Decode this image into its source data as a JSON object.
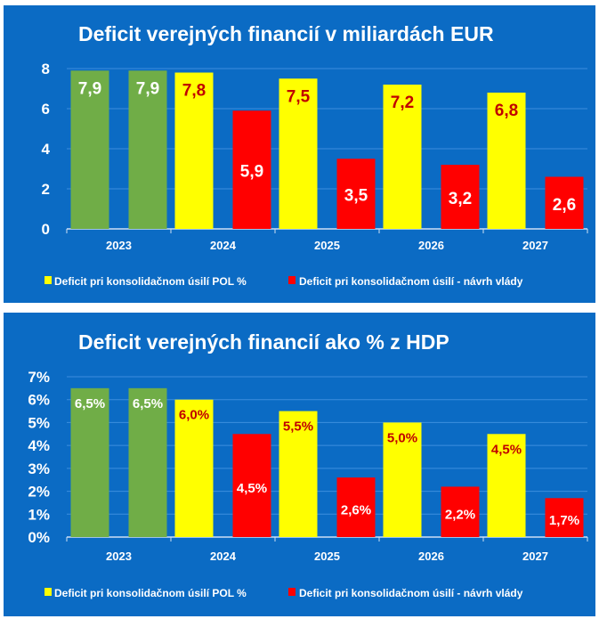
{
  "colors": {
    "background": "#0b6bc4",
    "green": "#70ad47",
    "yellow": "#ffff00",
    "red": "#ff0000",
    "label_dark_red": "#c00000",
    "text": "#ffffff",
    "grid": "#3d8ede"
  },
  "chart_data": [
    {
      "type": "bar",
      "title": "Deficit verejných financií v miliardách EUR",
      "categories": [
        "2023",
        "2024",
        "2025",
        "2026",
        "2027"
      ],
      "series": [
        {
          "name": "Deficit pri konsolidačnom úsilí POL %",
          "values": [
            7.9,
            7.8,
            7.5,
            7.2,
            6.8
          ],
          "labels": [
            "7,9",
            "7,8",
            "7,5",
            "7,2",
            "6,8"
          ]
        },
        {
          "name": "Deficit pri konsolidačnom úsilí - návrh vlády",
          "values": [
            7.9,
            5.9,
            3.5,
            3.2,
            2.6
          ],
          "labels": [
            "7,9",
            "5,9",
            "3,5",
            "3,2",
            "2,6"
          ]
        }
      ],
      "note_2023_color": "green",
      "ylim": [
        0,
        8
      ],
      "yticks": [
        0,
        2,
        4,
        6,
        8
      ],
      "ytick_labels": [
        "0",
        "2",
        "4",
        "6",
        "8"
      ],
      "grid": true,
      "legend": "bottom"
    },
    {
      "type": "bar",
      "title": "Deficit verejných financií ako % z HDP",
      "categories": [
        "2023",
        "2024",
        "2025",
        "2026",
        "2027"
      ],
      "series": [
        {
          "name": "Deficit pri konsolidačnom úsilí POL %",
          "values": [
            6.5,
            6.0,
            5.5,
            5.0,
            4.5
          ],
          "labels": [
            "6,5%",
            "6,0%",
            "5,5%",
            "5,0%",
            "4,5%"
          ]
        },
        {
          "name": "Deficit pri konsolidačnom úsilí - návrh vlády",
          "values": [
            6.5,
            4.5,
            2.6,
            2.2,
            1.7
          ],
          "labels": [
            "6,5%",
            "4,5%",
            "2,6%",
            "2,2%",
            "1,7%"
          ]
        }
      ],
      "note_2023_color": "green",
      "ylim": [
        0,
        7
      ],
      "yticks": [
        0,
        1,
        2,
        3,
        4,
        5,
        6,
        7
      ],
      "ytick_labels": [
        "0%",
        "1%",
        "2%",
        "3%",
        "4%",
        "5%",
        "6%",
        "7%"
      ],
      "grid": true,
      "legend": "bottom"
    }
  ]
}
